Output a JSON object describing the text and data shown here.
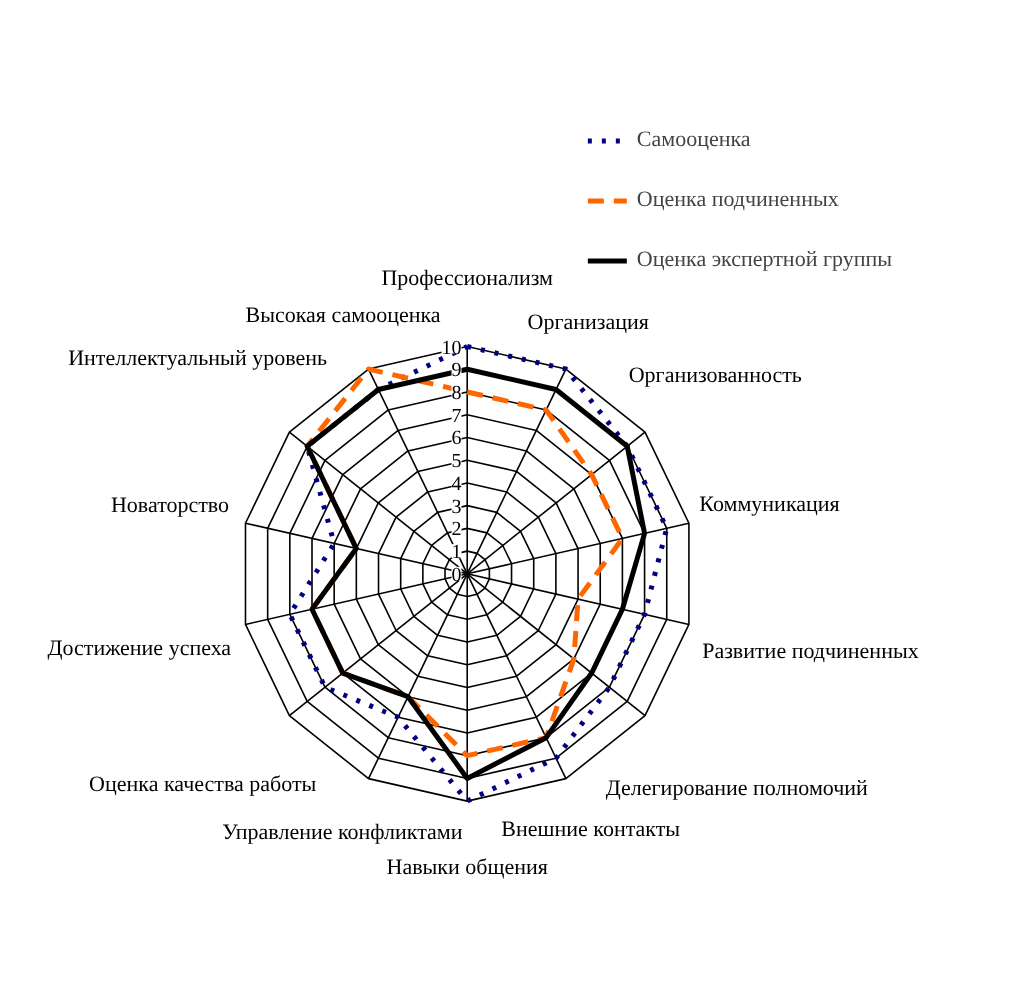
{
  "chart_data": {
    "type": "radar",
    "categories": [
      "Профессионализм",
      "Организация",
      "Организованность",
      "Коммуникация",
      "Развитие подчиненных",
      "Делегирование полномочий",
      "Внешние контакты",
      "Навыки общения",
      "Управление конфликтами",
      "Оценка качества работы",
      "Достижение успеха",
      "Новаторство",
      "Интеллектуальный уровень",
      "Высокая самооценка"
    ],
    "series": [
      {
        "name": "Самооценка",
        "color": "#000080",
        "line_style": "dotted",
        "values": [
          10,
          10,
          9,
          9,
          8,
          8,
          9,
          10,
          7,
          8,
          8,
          6,
          9,
          9
        ]
      },
      {
        "name": "Оценка подчиненных",
        "color": "#ff6600",
        "line_style": "dashed",
        "values": [
          8,
          8,
          7,
          7,
          5,
          6,
          8,
          8,
          6,
          7,
          7,
          5,
          9,
          10
        ]
      },
      {
        "name": "Оценка экспертной группы",
        "color": "#000000",
        "line_style": "solid",
        "values": [
          9,
          9,
          9,
          8,
          7,
          7,
          8,
          9,
          6,
          7,
          7,
          5,
          9,
          9
        ]
      }
    ],
    "ylim": [
      0,
      10
    ],
    "yticks": [
      0,
      1,
      2,
      3,
      4,
      5,
      6,
      7,
      8,
      9,
      10
    ],
    "grid": true,
    "legend": "top right",
    "marker": "none"
  }
}
